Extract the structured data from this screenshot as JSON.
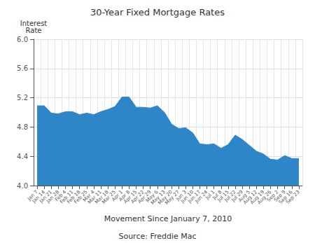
{
  "chart_data": {
    "type": "area",
    "title": "30-Year Fixed Mortgage Rates",
    "xlabel": "Movement Since January 7, 2010",
    "ylabel": "Interest\nRate",
    "annotations": [
      "Source: Freddie Mac"
    ],
    "color": "#2E86C8",
    "categories": [
      "Jan 7",
      "Jan 14",
      "Jan 21",
      "Jan 28",
      "Feb 4",
      "Feb 11",
      "Feb 18",
      "Feb 25",
      "Mar 4",
      "Mar 11",
      "Mar 18",
      "Mar 25",
      "Apr 1",
      "Apr 8",
      "Apr 15",
      "Apr 22",
      "Apr 29",
      "May 6",
      "May 13",
      "May 20",
      "May 27",
      "Jun 3",
      "Jun 10",
      "Jun 17",
      "Jun 24",
      "Jul 1",
      "Jul 8",
      "Jul 15",
      "Jul 22",
      "Jul 29",
      "Aug 5",
      "Aug 12",
      "Aug 19",
      "Aug 26",
      "Sep 2",
      "Sep 9",
      "Sep 16",
      "Sep 23"
    ],
    "values": [
      5.09,
      5.09,
      4.99,
      4.98,
      5.01,
      5.01,
      4.97,
      4.99,
      4.97,
      5.01,
      5.04,
      5.08,
      5.21,
      5.21,
      5.07,
      5.07,
      5.06,
      5.09,
      5.0,
      4.84,
      4.78,
      4.79,
      4.72,
      4.57,
      4.56,
      4.57,
      4.51,
      4.56,
      4.69,
      4.63,
      4.55,
      4.47,
      4.43,
      4.36,
      4.35,
      4.41,
      4.37,
      4.37
    ],
    "ylim": [
      4.0,
      6.0
    ],
    "yticks": [
      {
        "value": 4.0,
        "label": "4.0"
      },
      4.4,
      4.8,
      5.2,
      5.6,
      {
        "value": 6.0,
        "label": "6.0"
      }
    ],
    "grid": true
  }
}
